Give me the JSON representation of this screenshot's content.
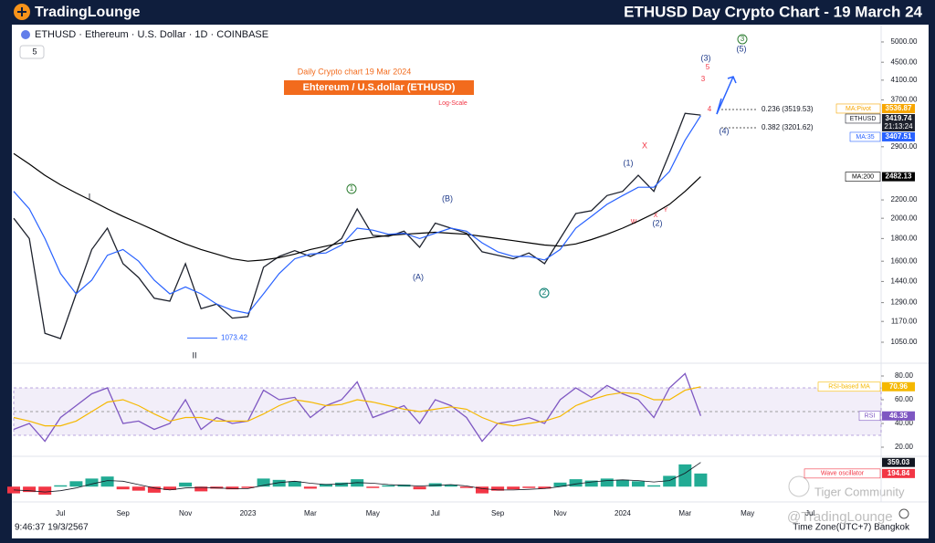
{
  "header": {
    "logo": "TradingLounge",
    "title": "ETHUSD Day Crypto Chart - 19 March 24"
  },
  "chart_data": [
    {
      "type": "line",
      "title": "ETHUSD · Ethereum · U.S. Dollar · 1D · COINBASE",
      "indicator_count": "5",
      "log_scale": true,
      "annotations": [
        "Daily Crypto chart 19 Mar 2024",
        "Ehtereum / U.S.dollar (ETHUSD)",
        "Log-Scale"
      ],
      "categories": [
        null,
        null,
        null,
        "Jul",
        null,
        null,
        null,
        "Sep",
        null,
        null,
        null,
        "Nov",
        null,
        null,
        null,
        "2023",
        null,
        null,
        null,
        "Mar",
        null,
        null,
        null,
        "May",
        null,
        null,
        null,
        "Jul",
        null,
        null,
        null,
        "Sep",
        null,
        null,
        null,
        "Nov",
        null,
        null,
        null,
        "2024",
        null,
        null,
        null,
        "Mar",
        null,
        null,
        null,
        "May",
        null,
        null,
        null,
        "Jul",
        null,
        null,
        null,
        null
      ],
      "series": [
        {
          "name": "ETHUSD",
          "color": "#1e222d",
          "countdown": "21:13:24",
          "values": [
            2000,
            1800,
            1100,
            1070,
            1350,
            1700,
            1900,
            1580,
            1470,
            1320,
            1300,
            1580,
            1250,
            1280,
            1190,
            1200,
            1550,
            1640,
            1690,
            1640,
            1700,
            1800,
            2100,
            1830,
            1820,
            1870,
            1720,
            1950,
            1900,
            1850,
            1680,
            1650,
            1620,
            1670,
            1580,
            1800,
            2050,
            2080,
            2250,
            2300,
            2500,
            2300,
            2800,
            3450,
            3419.74,
            null,
            null,
            null,
            null,
            null,
            null,
            null,
            null,
            null,
            null,
            null
          ]
        },
        {
          "name": "MA:200",
          "color": "#000000",
          "values": [
            2800,
            2650,
            2500,
            2380,
            2280,
            2190,
            2100,
            2020,
            1950,
            1880,
            1810,
            1750,
            1700,
            1660,
            1620,
            1600,
            1610,
            1630,
            1660,
            1700,
            1730,
            1760,
            1790,
            1810,
            1830,
            1840,
            1850,
            1860,
            1850,
            1840,
            1820,
            1800,
            1780,
            1760,
            1740,
            1730,
            1750,
            1790,
            1840,
            1900,
            1970,
            2050,
            2150,
            2300,
            2482.13,
            null,
            null,
            null,
            null,
            null,
            null,
            null,
            null,
            null,
            null,
            null
          ]
        },
        {
          "name": "MA:35",
          "color": "#2962ff",
          "values": [
            2300,
            2100,
            1800,
            1500,
            1350,
            1450,
            1650,
            1700,
            1600,
            1450,
            1350,
            1400,
            1350,
            1280,
            1240,
            1220,
            1350,
            1500,
            1620,
            1660,
            1670,
            1740,
            1900,
            1880,
            1840,
            1850,
            1800,
            1850,
            1900,
            1870,
            1760,
            1680,
            1640,
            1640,
            1610,
            1700,
            1900,
            2020,
            2150,
            2250,
            2350,
            2350,
            2550,
            3000,
            3407.51,
            null,
            null,
            null,
            null,
            null,
            null,
            null,
            null,
            null,
            null,
            null
          ]
        }
      ],
      "markers": [
        {
          "name": "MA:Pivot",
          "value": 3536.87,
          "color": "#f7a600"
        }
      ],
      "fib_levels": [
        {
          "value": 3519.53,
          "label": "0.236 (3519.53)"
        },
        {
          "value": 3201.62,
          "label": "0.382 (3201.62)"
        }
      ],
      "low_marker": 1073.42,
      "wave_labels": [
        "I",
        "II",
        "1",
        "(A)",
        "(B)",
        "2",
        "(1)",
        "(2)",
        "3",
        "(3)",
        "(4)",
        "(5)",
        "X",
        "W",
        "X",
        "Y",
        "3",
        "4",
        "5"
      ],
      "ylim": [
        955,
        5445
      ],
      "yticks": [
        {
          "value": 5000,
          "label": "5000.00"
        },
        {
          "value": 4500,
          "label": "4500.00"
        },
        {
          "value": 4100,
          "label": "4100.00"
        },
        {
          "value": 3700,
          "label": "3700.00"
        },
        {
          "value": 2900,
          "label": "2900.00"
        },
        {
          "value": 2200,
          "label": "2200.00"
        },
        {
          "value": 2000,
          "label": "2000.00"
        },
        {
          "value": 1800,
          "label": "1800.00"
        },
        {
          "value": 1600,
          "label": "1600.00"
        },
        {
          "value": 1440,
          "label": "1440.00"
        },
        {
          "value": 1290,
          "label": "1290.00"
        },
        {
          "value": 1170,
          "label": "1170.00"
        },
        {
          "value": 1050,
          "label": "1050.00"
        }
      ]
    },
    {
      "type": "line",
      "series": [
        {
          "name": "RSI",
          "color": "#7e57c2",
          "values": [
            35,
            40,
            25,
            45,
            55,
            65,
            70,
            40,
            42,
            35,
            40,
            60,
            35,
            45,
            40,
            42,
            68,
            60,
            62,
            45,
            55,
            60,
            75,
            45,
            50,
            55,
            40,
            60,
            55,
            45,
            25,
            40,
            42,
            45,
            40,
            60,
            70,
            62,
            72,
            65,
            60,
            45,
            70,
            82,
            46.35
          ]
        },
        {
          "name": "RSI-based MA",
          "color": "#f5b800",
          "values": [
            45,
            42,
            38,
            38,
            42,
            50,
            58,
            60,
            55,
            48,
            42,
            45,
            45,
            42,
            42,
            42,
            48,
            55,
            60,
            58,
            55,
            56,
            60,
            58,
            55,
            52,
            50,
            52,
            54,
            52,
            45,
            40,
            38,
            40,
            42,
            46,
            55,
            60,
            64,
            66,
            65,
            60,
            60,
            68,
            70.96
          ]
        }
      ],
      "band": [
        30,
        70
      ],
      "band_color": "#7e57c2",
      "midline": 50,
      "ylim": [
        10,
        90
      ],
      "yticks": [
        {
          "value": 80,
          "label": "80.00"
        },
        {
          "value": 60,
          "label": "60.00"
        },
        {
          "value": 40,
          "label": "40.00"
        },
        {
          "value": 20,
          "label": "20.00"
        }
      ]
    },
    {
      "type": "bar",
      "series": [
        {
          "name": "Wave oscillator",
          "color": "#f23645",
          "positive_color": "#22ab94",
          "negative_color": "#f23645",
          "values": [
            -100,
            -80,
            -120,
            20,
            80,
            120,
            150,
            -40,
            -60,
            -90,
            -50,
            60,
            -70,
            -30,
            -40,
            -20,
            120,
            100,
            80,
            -30,
            40,
            60,
            110,
            -20,
            20,
            30,
            -40,
            50,
            30,
            -20,
            -100,
            -60,
            -40,
            -20,
            -30,
            60,
            110,
            90,
            120,
            100,
            80,
            20,
            160,
            330,
            194.84
          ]
        },
        {
          "type": "line",
          "color": "#131722",
          "values": [
            -50,
            -60,
            -80,
            -60,
            -20,
            40,
            90,
            80,
            30,
            -20,
            -50,
            -20,
            -10,
            -20,
            -30,
            -30,
            20,
            60,
            80,
            50,
            30,
            40,
            60,
            50,
            30,
            20,
            10,
            20,
            30,
            10,
            -30,
            -50,
            -50,
            -40,
            -30,
            0,
            40,
            70,
            90,
            100,
            90,
            70,
            90,
            200,
            359.03
          ]
        }
      ],
      "ylim": [
        -200,
        450
      ]
    }
  ],
  "footer": {
    "time": "9:46:37 19/3/2567",
    "timezone": "Time Zone(UTC+7) Bangkok"
  },
  "watermarks": [
    "Tiger Community",
    "@TradingLounge"
  ]
}
